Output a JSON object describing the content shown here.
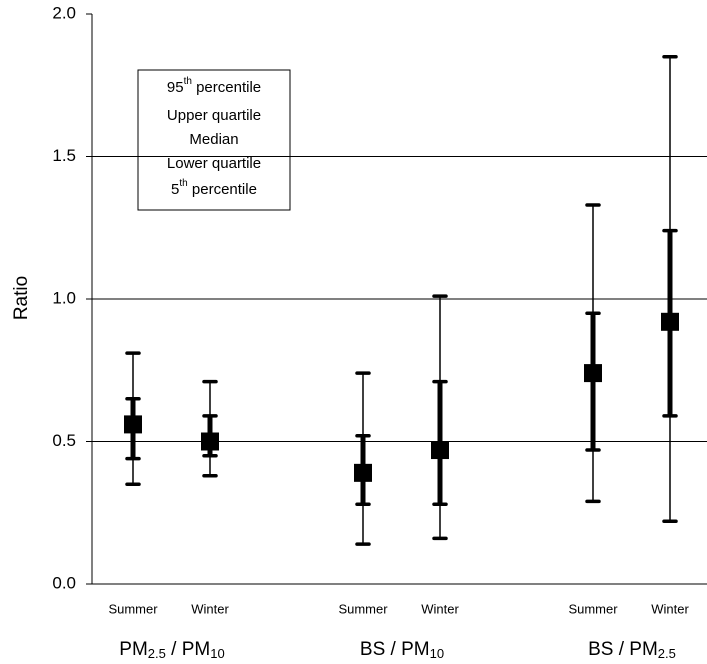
{
  "chart_data": {
    "type": "box",
    "y_label": "Ratio",
    "ylim": [
      0,
      2
    ],
    "yticks": [
      {
        "value": 0,
        "label": "0.0"
      },
      {
        "value": 0.5,
        "label": "0.5"
      },
      {
        "value": 1,
        "label": "1.0"
      },
      {
        "value": 1.5,
        "label": "1.5"
      },
      {
        "value": 2,
        "label": "2.0"
      }
    ],
    "grid": true,
    "color": "#000000",
    "legend": [
      [
        "95",
        "th",
        " percentile"
      ],
      [
        "Upper quartile"
      ],
      [
        "Median"
      ],
      [
        "Lower quartile"
      ],
      [
        "5",
        "th",
        " percentile"
      ]
    ],
    "groups": [
      {
        "label": [
          "PM",
          "2.5",
          " / PM",
          "10"
        ],
        "boxes": [
          {
            "category": "Summer",
            "p5": 0.35,
            "q1": 0.44,
            "median": 0.56,
            "q3": 0.65,
            "p95": 0.81
          },
          {
            "category": "Winter",
            "p5": 0.38,
            "q1": 0.45,
            "median": 0.5,
            "q3": 0.59,
            "p95": 0.71
          }
        ]
      },
      {
        "label": [
          "BS / PM",
          "10"
        ],
        "boxes": [
          {
            "category": "Summer",
            "p5": 0.14,
            "q1": 0.28,
            "median": 0.39,
            "q3": 0.52,
            "p95": 0.74
          },
          {
            "category": "Winter",
            "p5": 0.16,
            "q1": 0.28,
            "median": 0.47,
            "q3": 0.71,
            "p95": 1.01
          }
        ]
      },
      {
        "label": [
          "BS / PM",
          "2.5"
        ],
        "boxes": [
          {
            "category": "Summer",
            "p5": 0.29,
            "q1": 0.47,
            "median": 0.74,
            "q3": 0.95,
            "p95": 1.33
          },
          {
            "category": "Winter",
            "p5": 0.22,
            "q1": 0.59,
            "median": 0.92,
            "q3": 1.24,
            "p95": 1.85
          }
        ]
      }
    ]
  }
}
